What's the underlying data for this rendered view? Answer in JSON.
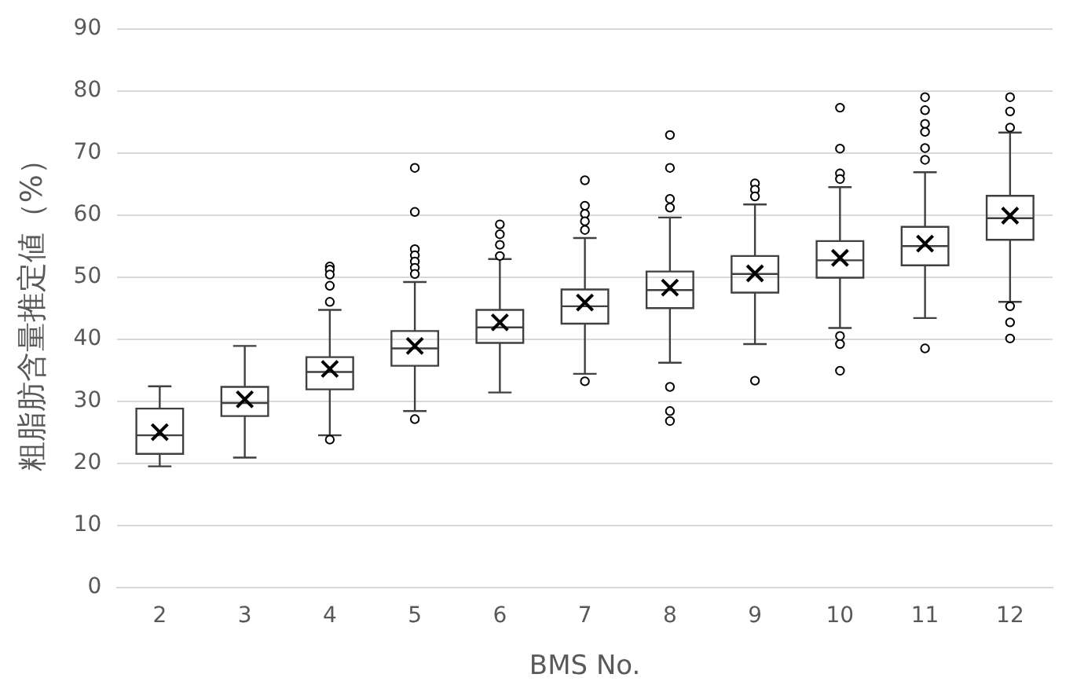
{
  "chart_data": {
    "type": "box",
    "xlabel": "BMS No.",
    "ylabel": "粗脂肪含量推定値（%）",
    "categories": [
      "2",
      "3",
      "4",
      "5",
      "6",
      "7",
      "8",
      "9",
      "10",
      "11",
      "12"
    ],
    "ylim": [
      0,
      90
    ],
    "yticks": [
      0,
      10,
      20,
      30,
      40,
      50,
      60,
      70,
      80,
      90
    ],
    "grid": "y",
    "legend": false,
    "marker": "circle",
    "color": "#404040",
    "boxes": [
      {
        "low": 19.5,
        "q1": 21.5,
        "median": 24.5,
        "q3": 28.8,
        "high": 32.4,
        "mean": 25.0
      },
      {
        "low": 20.9,
        "q1": 27.6,
        "median": 29.7,
        "q3": 32.3,
        "high": 38.9,
        "mean": 30.3
      },
      {
        "low": 24.5,
        "q1": 31.9,
        "median": 34.7,
        "q3": 37.1,
        "high": 44.7,
        "mean": 35.2,
        "outliers": [
          51.7,
          51.2,
          50.4,
          48.6,
          46.0,
          23.8
        ]
      },
      {
        "low": 28.4,
        "q1": 35.7,
        "median": 38.5,
        "q3": 41.3,
        "high": 49.2,
        "mean": 38.9,
        "outliers": [
          67.6,
          60.5,
          54.5,
          53.5,
          52.5,
          51.5,
          50.5,
          27.1
        ]
      },
      {
        "low": 31.4,
        "q1": 39.4,
        "median": 41.9,
        "q3": 44.7,
        "high": 52.9,
        "mean": 42.7,
        "outliers": [
          58.5,
          56.9,
          55.2,
          53.4
        ]
      },
      {
        "low": 34.4,
        "q1": 42.5,
        "median": 45.3,
        "q3": 48.0,
        "high": 56.3,
        "mean": 45.9,
        "outliers": [
          65.6,
          61.5,
          60.2,
          59.0,
          57.6,
          33.2
        ]
      },
      {
        "low": 36.2,
        "q1": 45.0,
        "median": 47.9,
        "q3": 50.9,
        "high": 59.6,
        "mean": 48.3,
        "outliers": [
          72.9,
          67.6,
          62.6,
          61.2,
          32.3,
          28.4,
          26.8
        ]
      },
      {
        "low": 39.2,
        "q1": 47.5,
        "median": 50.5,
        "q3": 53.4,
        "high": 61.7,
        "mean": 50.6,
        "outliers": [
          65.1,
          64.1,
          63.0,
          33.3
        ]
      },
      {
        "low": 41.8,
        "q1": 49.9,
        "median": 52.7,
        "q3": 55.8,
        "high": 64.5,
        "mean": 53.1,
        "outliers": [
          77.3,
          70.7,
          66.7,
          65.8,
          40.5,
          39.2,
          34.9
        ]
      },
      {
        "low": 43.4,
        "q1": 51.9,
        "median": 55.0,
        "q3": 58.1,
        "high": 66.9,
        "mean": 55.4,
        "outliers": [
          79.0,
          76.9,
          74.7,
          73.4,
          70.8,
          68.9,
          38.5
        ]
      },
      {
        "low": 46.0,
        "q1": 56.0,
        "median": 59.5,
        "q3": 63.1,
        "high": 73.3,
        "mean": 59.9,
        "outliers": [
          79.0,
          76.7,
          74.1,
          45.3,
          42.7,
          40.1
        ]
      }
    ]
  }
}
